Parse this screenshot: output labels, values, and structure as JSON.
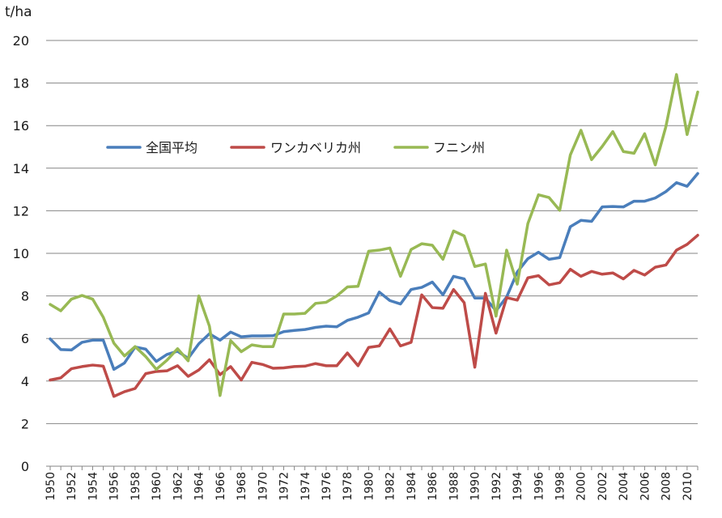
{
  "chart_data": {
    "type": "line",
    "title": "",
    "ylabel": "t/ha",
    "xlabel": "",
    "ylim": [
      0,
      20
    ],
    "yticks": [
      0,
      2,
      4,
      6,
      8,
      10,
      12,
      14,
      16,
      18,
      20
    ],
    "xlim": [
      1950,
      2011
    ],
    "xticks": [
      1950,
      1952,
      1954,
      1956,
      1958,
      1960,
      1962,
      1964,
      1966,
      1968,
      1970,
      1972,
      1974,
      1976,
      1978,
      1980,
      1982,
      1984,
      1986,
      1988,
      1990,
      1992,
      1994,
      1996,
      1998,
      2000,
      2002,
      2004,
      2006,
      2008,
      2010
    ],
    "grid": "horizontal",
    "legend_position": "top-left",
    "x": [
      1950,
      1951,
      1952,
      1953,
      1954,
      1955,
      1956,
      1957,
      1958,
      1959,
      1960,
      1961,
      1962,
      1963,
      1964,
      1965,
      1966,
      1967,
      1968,
      1969,
      1970,
      1971,
      1972,
      1973,
      1974,
      1975,
      1976,
      1977,
      1978,
      1979,
      1980,
      1981,
      1982,
      1983,
      1984,
      1985,
      1986,
      1987,
      1988,
      1989,
      1990,
      1991,
      1992,
      1993,
      1994,
      1995,
      1996,
      1997,
      1998,
      1999,
      2000,
      2001,
      2002,
      2003,
      2004,
      2005,
      2006,
      2007,
      2008,
      2009,
      2010,
      2011
    ],
    "series": [
      {
        "name": "全国平均",
        "color": "#4a7ebb",
        "values": [
          5.98,
          5.48,
          5.46,
          5.82,
          5.92,
          5.92,
          4.55,
          4.85,
          5.6,
          5.5,
          4.92,
          5.25,
          5.4,
          5.07,
          5.75,
          6.22,
          5.92,
          6.3,
          6.08,
          6.12,
          6.12,
          6.13,
          6.32,
          6.38,
          6.42,
          6.52,
          6.58,
          6.55,
          6.85,
          7.0,
          7.2,
          8.18,
          7.78,
          7.62,
          8.3,
          8.4,
          8.65,
          8.05,
          8.92,
          8.8,
          7.9,
          7.9,
          7.3,
          7.95,
          9.12,
          9.75,
          10.05,
          9.72,
          9.8,
          11.25,
          11.55,
          11.5,
          12.18,
          12.2,
          12.18,
          12.45,
          12.45,
          12.6,
          12.9,
          13.32,
          13.15,
          13.75
        ]
      },
      {
        "name": "ワンカベリカ州",
        "color": "#be4b48",
        "values": [
          4.05,
          4.15,
          4.58,
          4.68,
          4.75,
          4.7,
          3.28,
          3.5,
          3.65,
          4.35,
          4.45,
          4.48,
          4.72,
          4.22,
          4.52,
          5.0,
          4.3,
          4.68,
          4.05,
          4.88,
          4.78,
          4.6,
          4.62,
          4.68,
          4.7,
          4.82,
          4.72,
          4.72,
          5.32,
          4.72,
          5.58,
          5.65,
          6.45,
          5.65,
          5.82,
          8.05,
          7.45,
          7.42,
          8.3,
          7.68,
          4.65,
          8.12,
          6.25,
          7.92,
          7.8,
          8.85,
          8.95,
          8.52,
          8.62,
          9.25,
          8.92,
          9.15,
          9.02,
          9.08,
          8.8,
          9.2,
          8.98,
          9.35,
          9.45,
          10.15,
          10.42,
          10.85
        ]
      },
      {
        "name": "フニン州",
        "color": "#98b954",
        "values": [
          7.6,
          7.3,
          7.85,
          8.02,
          7.85,
          7.0,
          5.78,
          5.18,
          5.62,
          5.15,
          4.55,
          4.98,
          5.52,
          4.95,
          8.0,
          6.58,
          3.32,
          5.9,
          5.38,
          5.7,
          5.62,
          5.62,
          7.15,
          7.15,
          7.18,
          7.65,
          7.7,
          8.0,
          8.42,
          8.45,
          10.1,
          10.15,
          10.25,
          8.92,
          10.18,
          10.45,
          10.38,
          9.72,
          11.05,
          10.82,
          9.38,
          9.5,
          7.05,
          10.15,
          8.55,
          11.4,
          12.75,
          12.62,
          12.02,
          14.62,
          15.78,
          14.4,
          15.02,
          15.72,
          14.78,
          14.7,
          15.62,
          14.15,
          15.95,
          18.4,
          15.58,
          17.58
        ]
      }
    ]
  }
}
